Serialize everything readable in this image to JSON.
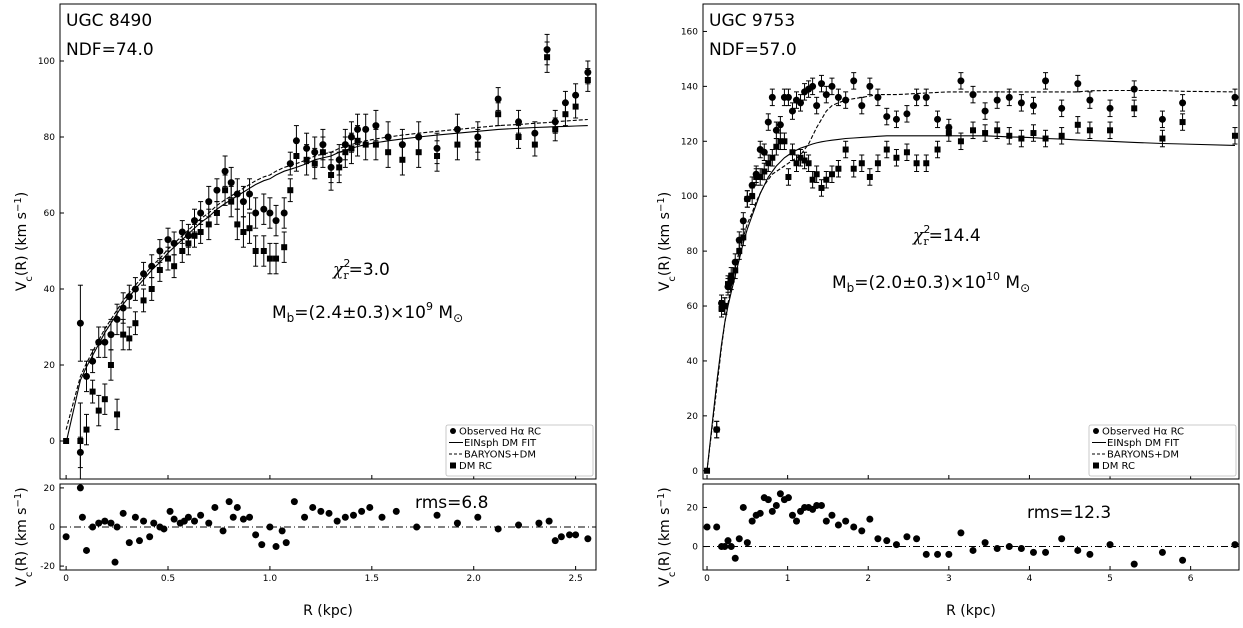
{
  "chart_data": [
    {
      "type": "scatter",
      "galaxy": "UGC 8490",
      "ndf": "NDF=74.0",
      "chi2": "=3.0",
      "mass": "M_b=(2.4±0.3)×10^9 M_⊙",
      "mass_parts": {
        "pre": "M",
        "sub": "b",
        "mid": "=(2.4±0.3)×10",
        "exp": "9",
        "unit": " M"
      },
      "rms": "rms=6.8",
      "xlabel": "R (kpc)",
      "ylabel": "V_c(R) (km s^-1)",
      "xlim": [
        -0.03,
        2.6
      ],
      "ylim": [
        -10,
        115
      ],
      "xticks": [
        0,
        0.5,
        1.0,
        1.5,
        2.0,
        2.5
      ],
      "yticks": [
        0,
        20,
        40,
        60,
        80,
        100
      ],
      "res_ylim": [
        -22,
        22
      ],
      "res_yticks": [
        -20,
        0,
        20
      ],
      "legend": [
        "Observed Hα RC",
        "EINsph DM FIT",
        "BARYONS+DM",
        "DM RC"
      ],
      "legend_position": "bottom-right",
      "observed": {
        "x": [
          0.07,
          0.1,
          0.13,
          0.16,
          0.19,
          0.22,
          0.25,
          0.28,
          0.31,
          0.34,
          0.38,
          0.42,
          0.46,
          0.5,
          0.53,
          0.57,
          0.6,
          0.63,
          0.66,
          0.7,
          0.74,
          0.78,
          0.81,
          0.84,
          0.87,
          0.9,
          0.93,
          0.97,
          1.0,
          1.03,
          1.07,
          1.1,
          1.13,
          1.18,
          1.22,
          1.26,
          1.3,
          1.34,
          1.37,
          1.4,
          1.43,
          1.47,
          1.52,
          1.58,
          1.65,
          1.73,
          1.82,
          1.92,
          2.02,
          2.12,
          2.22,
          2.3,
          2.36,
          2.4,
          2.45,
          2.5,
          2.56
        ],
        "y": [
          31,
          17,
          21,
          26,
          26,
          28,
          32,
          35,
          38,
          40,
          44,
          46,
          50,
          53,
          52,
          55,
          54,
          58,
          60,
          63,
          66,
          71,
          68,
          65,
          63,
          65,
          60,
          61,
          60,
          58,
          60,
          73,
          79,
          77,
          76,
          78,
          72,
          74,
          78,
          80,
          82,
          82,
          83,
          80,
          78,
          80,
          77,
          82,
          80,
          90,
          84,
          81,
          103,
          84,
          89,
          91,
          97
        ],
        "yerr": [
          10,
          4,
          3,
          4,
          4,
          4,
          4,
          4,
          3,
          3,
          3,
          3,
          3,
          3,
          3,
          3,
          3,
          3,
          3,
          4,
          3,
          4,
          4,
          4,
          4,
          4,
          4,
          4,
          4,
          4,
          4,
          3,
          4,
          4,
          4,
          4,
          4,
          4,
          4,
          4,
          4,
          4,
          4,
          4,
          4,
          4,
          4,
          4,
          4,
          3,
          3,
          3,
          4,
          3,
          3,
          3,
          3
        ],
        "eins_fit": [
          16,
          19.5,
          22.5,
          25.5,
          28.5,
          31,
          33.5,
          36,
          38,
          40,
          42.5,
          45,
          47,
          49.5,
          51,
          53,
          54.5,
          56,
          57.5,
          59,
          61,
          62.5,
          63.5,
          64.5,
          65.5,
          66.5,
          67.5,
          68.5,
          69,
          70,
          71,
          71.5,
          72,
          73,
          74,
          74.5,
          75,
          76,
          76.5,
          77,
          77.5,
          78,
          78.5,
          79,
          79.5,
          80,
          80.5,
          81,
          81.5,
          82,
          82.3,
          82.5,
          82.6,
          82.7,
          82.8,
          82.9,
          83
        ],
        "baryons_dm": [
          17,
          20.5,
          23.5,
          26.5,
          29.5,
          32,
          34.5,
          37,
          39,
          41,
          43.5,
          46,
          48,
          50.5,
          52,
          54,
          55.5,
          57,
          58.5,
          60,
          62,
          63.5,
          64.5,
          65.5,
          66.5,
          67.5,
          68.5,
          69.5,
          70,
          71,
          72,
          72.5,
          73,
          74,
          75,
          75.5,
          76,
          77,
          77.5,
          78,
          78.5,
          79,
          79.5,
          80,
          80.5,
          81,
          81.5,
          82,
          82.5,
          83,
          83.3,
          83.6,
          83.8,
          84,
          84.2,
          84.4,
          84.6
        ],
        "dm_rc": [
          0,
          3,
          13,
          8,
          11,
          20,
          7,
          28,
          27,
          31,
          37,
          40,
          45,
          48,
          46,
          50,
          52,
          54,
          55,
          57,
          60,
          66,
          63,
          57,
          55,
          56,
          50,
          50,
          48,
          48,
          51,
          66,
          75,
          74,
          73,
          76,
          70,
          72,
          76,
          77,
          79,
          78,
          78,
          76,
          74,
          76,
          75,
          78,
          78,
          86,
          80,
          78,
          101,
          82,
          86,
          88,
          95
        ]
      },
      "residuals": {
        "x": [
          0.0,
          0.07,
          0.08,
          0.1,
          0.13,
          0.16,
          0.19,
          0.22,
          0.24,
          0.25,
          0.28,
          0.31,
          0.34,
          0.36,
          0.38,
          0.41,
          0.43,
          0.46,
          0.48,
          0.51,
          0.53,
          0.56,
          0.58,
          0.6,
          0.63,
          0.66,
          0.7,
          0.73,
          0.77,
          0.8,
          0.82,
          0.84,
          0.87,
          0.9,
          0.93,
          0.96,
          1.0,
          1.03,
          1.06,
          1.08,
          1.12,
          1.17,
          1.21,
          1.25,
          1.29,
          1.33,
          1.37,
          1.41,
          1.45,
          1.49,
          1.55,
          1.62,
          1.72,
          1.82,
          1.92,
          2.02,
          2.12,
          2.22,
          2.32,
          2.37,
          2.4,
          2.43,
          2.47,
          2.5,
          2.56
        ],
        "y": [
          -5,
          20,
          5,
          -12,
          0,
          2,
          3,
          2,
          -18,
          0,
          7,
          -8,
          5,
          -7,
          3,
          -5,
          2,
          0,
          -1,
          8,
          4,
          2,
          3,
          5,
          3,
          6,
          2,
          10,
          -2,
          13,
          5,
          10,
          4,
          5,
          -4,
          -9,
          0,
          -10,
          -2,
          -8,
          13,
          5,
          10,
          8,
          7,
          3,
          5,
          6,
          8,
          10,
          5,
          8,
          0,
          6,
          2,
          5,
          -1,
          1,
          2,
          3,
          -7,
          -5,
          -4,
          -4,
          -6
        ]
      }
    },
    {
      "type": "scatter",
      "galaxy": "UGC 9753",
      "ndf": "NDF=57.0",
      "chi2": "=14.4",
      "mass": "M_b=(2.0±0.3)×10^10 M_⊙",
      "mass_parts": {
        "pre": "M",
        "sub": "b",
        "mid": "=(2.0±0.3)×10",
        "exp": "10",
        "unit": " M"
      },
      "rms": "rms=12.3",
      "xlabel": "R (kpc)",
      "ylabel": "V_c(R) (km s^-1)",
      "xlim": [
        -0.05,
        6.6
      ],
      "ylim": [
        -3,
        170
      ],
      "xticks": [
        0,
        1,
        2,
        3,
        4,
        5,
        6
      ],
      "yticks": [
        0,
        20,
        40,
        60,
        80,
        100,
        120,
        140,
        160
      ],
      "res_ylim": [
        -12,
        32
      ],
      "res_yticks": [
        0,
        20
      ],
      "legend": [
        "Observed Hα RC",
        "EINsph DM FIT",
        "BARYONS+DM",
        "DM RC"
      ],
      "legend_position": "bottom-right",
      "observed": {
        "x": [
          0.12,
          0.18,
          0.22,
          0.26,
          0.3,
          0.35,
          0.4,
          0.45,
          0.5,
          0.56,
          0.61,
          0.66,
          0.71,
          0.76,
          0.81,
          0.86,
          0.91,
          0.96,
          1.01,
          1.06,
          1.11,
          1.16,
          1.21,
          1.26,
          1.31,
          1.36,
          1.42,
          1.48,
          1.55,
          1.63,
          1.72,
          1.82,
          1.92,
          2.02,
          2.12,
          2.23,
          2.35,
          2.48,
          2.6,
          2.72,
          2.86,
          3.0,
          3.15,
          3.3,
          3.45,
          3.6,
          3.75,
          3.9,
          4.05,
          4.2,
          4.4,
          4.6,
          4.75,
          5.0,
          5.3,
          5.65,
          5.9,
          6.55
        ],
        "y": [
          15,
          61,
          60,
          67,
          69,
          76,
          84,
          91,
          99,
          104,
          108,
          117,
          116,
          127,
          136,
          124,
          126,
          136,
          136,
          131,
          135,
          134,
          138,
          139,
          140,
          133,
          141,
          137,
          140,
          136,
          135,
          142,
          133,
          140,
          136,
          129,
          128,
          130,
          136,
          136,
          128,
          125,
          142,
          137,
          131,
          135,
          136,
          134,
          133,
          142,
          132,
          141,
          135,
          132,
          139,
          128,
          134,
          136
        ],
        "yerr": [
          3,
          3,
          3,
          3,
          3,
          3,
          3,
          3,
          3,
          3,
          3,
          3,
          3,
          3,
          3,
          3,
          3,
          3,
          3,
          3,
          3,
          3,
          3,
          3,
          3,
          3,
          3,
          3,
          3,
          3,
          3,
          3,
          3,
          3,
          3,
          3,
          3,
          3,
          3,
          3,
          3,
          3,
          3,
          3,
          3,
          3,
          3,
          3,
          3,
          3,
          3,
          3,
          3,
          3,
          3,
          3,
          3,
          3
        ],
        "eins_fit": [
          32,
          46,
          54,
          60,
          65,
          71,
          77,
          83,
          88,
          93,
          97,
          101,
          104,
          107,
          109,
          111,
          112.5,
          114,
          115,
          116,
          116.8,
          117.5,
          118,
          118.5,
          119,
          119.4,
          119.8,
          120.1,
          120.4,
          120.7,
          121,
          121.2,
          121.4,
          121.6,
          121.8,
          122,
          122,
          122,
          122,
          122,
          122,
          122,
          122,
          122,
          122,
          121.8,
          121.6,
          121.5,
          121.3,
          121,
          120.8,
          120.5,
          120.3,
          120,
          119.6,
          119.2,
          119,
          118.5
        ],
        "baryons_dm": [
          30,
          45,
          54,
          61,
          67,
          74,
          80,
          85,
          90,
          94,
          98,
          101,
          104,
          106,
          108,
          109,
          110,
          111,
          112,
          113,
          114,
          115,
          117,
          119,
          122,
          125,
          128,
          131,
          133,
          134,
          135,
          135.5,
          136,
          136.5,
          137,
          137,
          137,
          137.2,
          137.4,
          137.6,
          137.8,
          138,
          138,
          138,
          138,
          138,
          138,
          138,
          138,
          138,
          138,
          138,
          138.4,
          138.5,
          138.5,
          138.5,
          138.2,
          138
        ]
      },
      "dm_rc": {
        "x": [
          0.0,
          0.12,
          0.18,
          0.22,
          0.26,
          0.3,
          0.35,
          0.4,
          0.45,
          0.5,
          0.56,
          0.61,
          0.66,
          0.71,
          0.76,
          0.81,
          0.86,
          0.91,
          0.96,
          1.01,
          1.06,
          1.11,
          1.16,
          1.21,
          1.26,
          1.31,
          1.36,
          1.42,
          1.48,
          1.55,
          1.63,
          1.72,
          1.82,
          1.92,
          2.02,
          2.12,
          2.23,
          2.35,
          2.48,
          2.6,
          2.72,
          2.86,
          3.0,
          3.15,
          3.3,
          3.45,
          3.6,
          3.75,
          3.9,
          4.05,
          4.2,
          4.4,
          4.6,
          4.75,
          5.0,
          5.3,
          5.65,
          5.9,
          6.55
        ],
        "y": [
          0,
          15,
          59,
          60,
          68,
          71,
          73,
          80,
          85,
          99,
          100,
          107,
          107,
          109,
          112,
          114,
          118,
          120,
          120,
          107,
          116,
          112,
          114,
          113,
          112,
          106,
          108,
          103,
          106,
          108,
          110,
          117,
          110,
          112,
          107,
          112,
          117,
          114,
          116,
          112,
          112,
          117,
          123,
          120,
          124,
          123,
          124,
          122,
          121,
          123,
          121,
          122,
          126,
          124,
          124,
          132,
          121,
          127,
          122
        ],
        "yerr": [
          0,
          3,
          3,
          3,
          3,
          3,
          3,
          3,
          3,
          3,
          3,
          3,
          3,
          3,
          3,
          3,
          3,
          3,
          3,
          3,
          3,
          3,
          3,
          3,
          3,
          3,
          3,
          3,
          3,
          3,
          3,
          3,
          3,
          3,
          3,
          3,
          3,
          3,
          3,
          3,
          3,
          3,
          3,
          3,
          3,
          3,
          3,
          3,
          3,
          3,
          3,
          3,
          3,
          3,
          3,
          3,
          3,
          3,
          3
        ]
      },
      "residuals": {
        "x": [
          0.0,
          0.12,
          0.18,
          0.22,
          0.26,
          0.3,
          0.35,
          0.4,
          0.45,
          0.5,
          0.56,
          0.61,
          0.66,
          0.71,
          0.76,
          0.81,
          0.86,
          0.91,
          0.96,
          1.01,
          1.06,
          1.11,
          1.16,
          1.21,
          1.26,
          1.31,
          1.36,
          1.42,
          1.48,
          1.55,
          1.63,
          1.72,
          1.82,
          1.92,
          2.02,
          2.12,
          2.23,
          2.35,
          2.48,
          2.6,
          2.72,
          2.86,
          3.0,
          3.15,
          3.3,
          3.45,
          3.6,
          3.75,
          3.9,
          4.05,
          4.2,
          4.4,
          4.6,
          4.75,
          5.0,
          5.3,
          5.65,
          5.9,
          6.55
        ],
        "y": [
          10,
          10,
          0,
          0,
          3,
          0,
          -6,
          4,
          20,
          2,
          13,
          16,
          17,
          25,
          24,
          18,
          21,
          27,
          24,
          25,
          16,
          13,
          18,
          20,
          20,
          19,
          21,
          21,
          13,
          16,
          11,
          13,
          10,
          8,
          14,
          4,
          3,
          1,
          5,
          4,
          -4,
          -4,
          -4,
          7,
          -2,
          2,
          -1,
          0,
          -1,
          -3,
          -3,
          4,
          -2,
          -4,
          1,
          -9,
          -3,
          -7,
          1
        ]
      }
    }
  ]
}
